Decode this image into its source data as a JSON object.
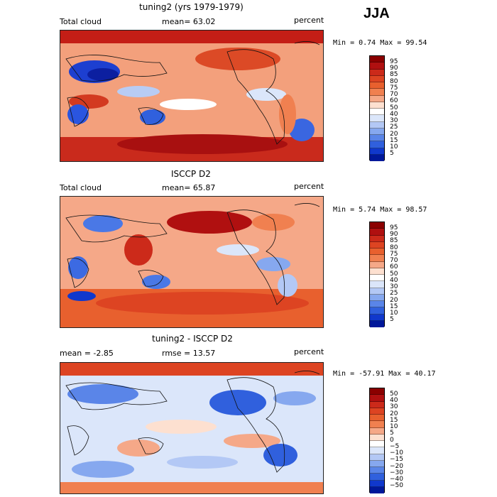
{
  "season": "JJA",
  "panels": [
    {
      "title": "tuning2 (yrs 1979-1979)",
      "left_label": "Total cloud",
      "mid_label": "mean=  63.02",
      "units": "percent",
      "minmax": "Min =   0.74 Max =  99.54",
      "colorbar_labels": [
        "95",
        "90",
        "85",
        "80",
        "75",
        "70",
        "60",
        "50",
        "40",
        "30",
        "25",
        "20",
        "15",
        "10",
        "5"
      ],
      "colorbar_colors": [
        "#8b0000",
        "#b01010",
        "#cc2a1a",
        "#dd4422",
        "#e8602e",
        "#f08050",
        "#f5a888",
        "#fde0d0",
        "#ffffff",
        "#dbe6fa",
        "#b3c8f5",
        "#86a8ef",
        "#5a85e8",
        "#3060dd",
        "#1038cc",
        "#00189a"
      ]
    },
    {
      "title": "ISCCP D2",
      "left_label": "Total cloud",
      "mid_label": "mean=  65.87",
      "units": "percent",
      "minmax": "Min =   5.74 Max =  98.57",
      "colorbar_labels": [
        "95",
        "90",
        "85",
        "80",
        "75",
        "70",
        "60",
        "50",
        "40",
        "30",
        "25",
        "20",
        "15",
        "10",
        "5"
      ],
      "colorbar_colors": [
        "#8b0000",
        "#b01010",
        "#cc2a1a",
        "#dd4422",
        "#e8602e",
        "#f08050",
        "#f5a888",
        "#fde0d0",
        "#ffffff",
        "#dbe6fa",
        "#b3c8f5",
        "#86a8ef",
        "#5a85e8",
        "#3060dd",
        "#1038cc",
        "#00189a"
      ]
    },
    {
      "title": "tuning2 - ISCCP D2",
      "left_label": "mean =   -2.85",
      "mid_label": "rmse =   13.57",
      "units": "percent",
      "minmax": "Min = -57.91 Max =  40.17",
      "colorbar_labels": [
        "50",
        "40",
        "30",
        "20",
        "15",
        "10",
        "5",
        "0",
        "−5",
        "−10",
        "−15",
        "−20",
        "−30",
        "−40",
        "−50"
      ],
      "colorbar_colors": [
        "#8b0000",
        "#b01010",
        "#cc2a1a",
        "#dd4422",
        "#e8602e",
        "#f08050",
        "#f5a888",
        "#fde0d0",
        "#ffffff",
        "#dbe6fa",
        "#b3c8f5",
        "#86a8ef",
        "#5a85e8",
        "#3060dd",
        "#1038cc",
        "#00189a"
      ]
    }
  ]
}
